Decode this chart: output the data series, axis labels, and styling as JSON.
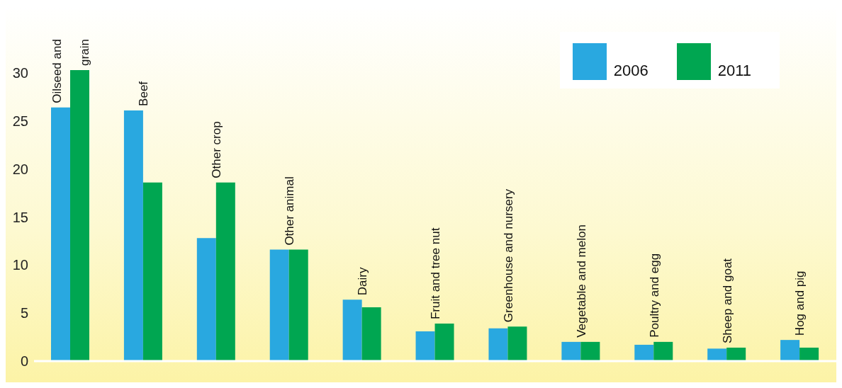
{
  "chart_data": {
    "type": "bar",
    "categories": [
      "Oilseed and grain",
      "Beef",
      "Other crop",
      "Other animal",
      "Dairy",
      "Fruit and tree nut",
      "Greenhouse and nursery",
      "Vegetable and melon",
      "Poultry and egg",
      "Sheep and goat",
      "Hog and pig"
    ],
    "series": [
      {
        "name": "2006",
        "color": "#29a8e0",
        "values": [
          26.4,
          26.1,
          12.8,
          11.6,
          6.4,
          3.1,
          3.4,
          2.0,
          1.7,
          1.3,
          2.2
        ]
      },
      {
        "name": "2011",
        "color": "#00a651",
        "values": [
          30.3,
          18.6,
          18.6,
          11.6,
          5.6,
          3.9,
          3.6,
          2.0,
          2.0,
          1.4,
          1.4
        ]
      }
    ],
    "ylim": [
      0,
      37
    ],
    "yticks": [
      0,
      5,
      10,
      15,
      20,
      25,
      30
    ],
    "legend": "top right"
  }
}
